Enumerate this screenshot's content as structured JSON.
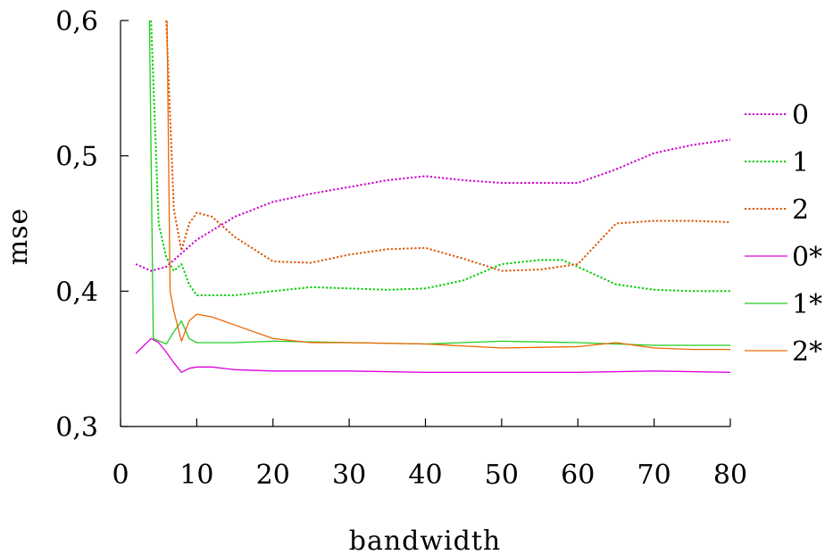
{
  "chart_data": {
    "type": "line",
    "xlabel": "bandwidth",
    "ylabel": "mse",
    "xlim": [
      0,
      80
    ],
    "ylim": [
      0.3,
      0.6
    ],
    "x_ticks": [
      0,
      10,
      20,
      30,
      40,
      50,
      60,
      70,
      80
    ],
    "y_ticks": [
      0.3,
      0.4,
      0.5,
      0.6
    ],
    "x_tick_labels": [
      "0",
      "10",
      "20",
      "30",
      "40",
      "50",
      "60",
      "70",
      "80"
    ],
    "y_tick_labels": [
      "0,3",
      "0,4",
      "0,5",
      "0,6"
    ],
    "grid": false,
    "legend_position": "right",
    "series": [
      {
        "name": "0",
        "color": "#cc00cc",
        "style": "dotted",
        "x": [
          2,
          4,
          6,
          8,
          10,
          15,
          20,
          25,
          30,
          35,
          40,
          45,
          50,
          55,
          60,
          65,
          70,
          75,
          80
        ],
        "y": [
          0.42,
          0.415,
          0.418,
          0.428,
          0.438,
          0.455,
          0.466,
          0.472,
          0.477,
          0.482,
          0.485,
          0.482,
          0.48,
          0.48,
          0.48,
          0.49,
          0.502,
          0.508,
          0.512
        ]
      },
      {
        "name": "1",
        "color": "#00cc00",
        "style": "dotted",
        "x": [
          4,
          5,
          6,
          7,
          8,
          9,
          10,
          15,
          20,
          25,
          30,
          35,
          40,
          45,
          50,
          55,
          58,
          60,
          65,
          70,
          75,
          80
        ],
        "y": [
          0.6,
          0.45,
          0.425,
          0.415,
          0.42,
          0.405,
          0.397,
          0.397,
          0.4,
          0.403,
          0.402,
          0.401,
          0.402,
          0.408,
          0.42,
          0.423,
          0.423,
          0.418,
          0.405,
          0.401,
          0.4,
          0.4
        ]
      },
      {
        "name": "2",
        "color": "#dd5500",
        "style": "dotted",
        "x": [
          6,
          7,
          8,
          9,
          10,
          12,
          15,
          20,
          25,
          30,
          35,
          40,
          45,
          50,
          55,
          60,
          65,
          70,
          75,
          80
        ],
        "y": [
          0.6,
          0.46,
          0.43,
          0.45,
          0.458,
          0.455,
          0.44,
          0.422,
          0.421,
          0.427,
          0.431,
          0.432,
          0.424,
          0.415,
          0.416,
          0.42,
          0.45,
          0.452,
          0.452,
          0.451
        ]
      },
      {
        "name": "0*",
        "color": "#dd00dd",
        "style": "solid",
        "x": [
          2,
          4,
          5,
          6,
          7,
          8,
          9,
          10,
          12,
          15,
          20,
          25,
          30,
          40,
          50,
          60,
          70,
          80
        ],
        "y": [
          0.354,
          0.365,
          0.362,
          0.355,
          0.347,
          0.34,
          0.343,
          0.344,
          0.344,
          0.342,
          0.341,
          0.341,
          0.341,
          0.34,
          0.34,
          0.34,
          0.341,
          0.34
        ]
      },
      {
        "name": "1*",
        "color": "#22cc22",
        "style": "solid",
        "x": [
          3.8,
          4.3,
          6,
          7,
          8,
          9,
          10,
          15,
          20,
          30,
          40,
          50,
          60,
          70,
          80
        ],
        "y": [
          0.6,
          0.365,
          0.361,
          0.37,
          0.378,
          0.365,
          0.362,
          0.362,
          0.363,
          0.362,
          0.361,
          0.363,
          0.362,
          0.36,
          0.36
        ]
      },
      {
        "name": "2*",
        "color": "#ee6600",
        "style": "solid",
        "x": [
          6.1,
          6.5,
          7,
          8,
          9,
          10,
          12,
          15,
          20,
          25,
          30,
          40,
          50,
          60,
          65,
          70,
          75,
          80
        ],
        "y": [
          0.6,
          0.4,
          0.385,
          0.363,
          0.378,
          0.383,
          0.381,
          0.375,
          0.365,
          0.362,
          0.362,
          0.361,
          0.358,
          0.359,
          0.362,
          0.358,
          0.357,
          0.357
        ]
      }
    ]
  }
}
